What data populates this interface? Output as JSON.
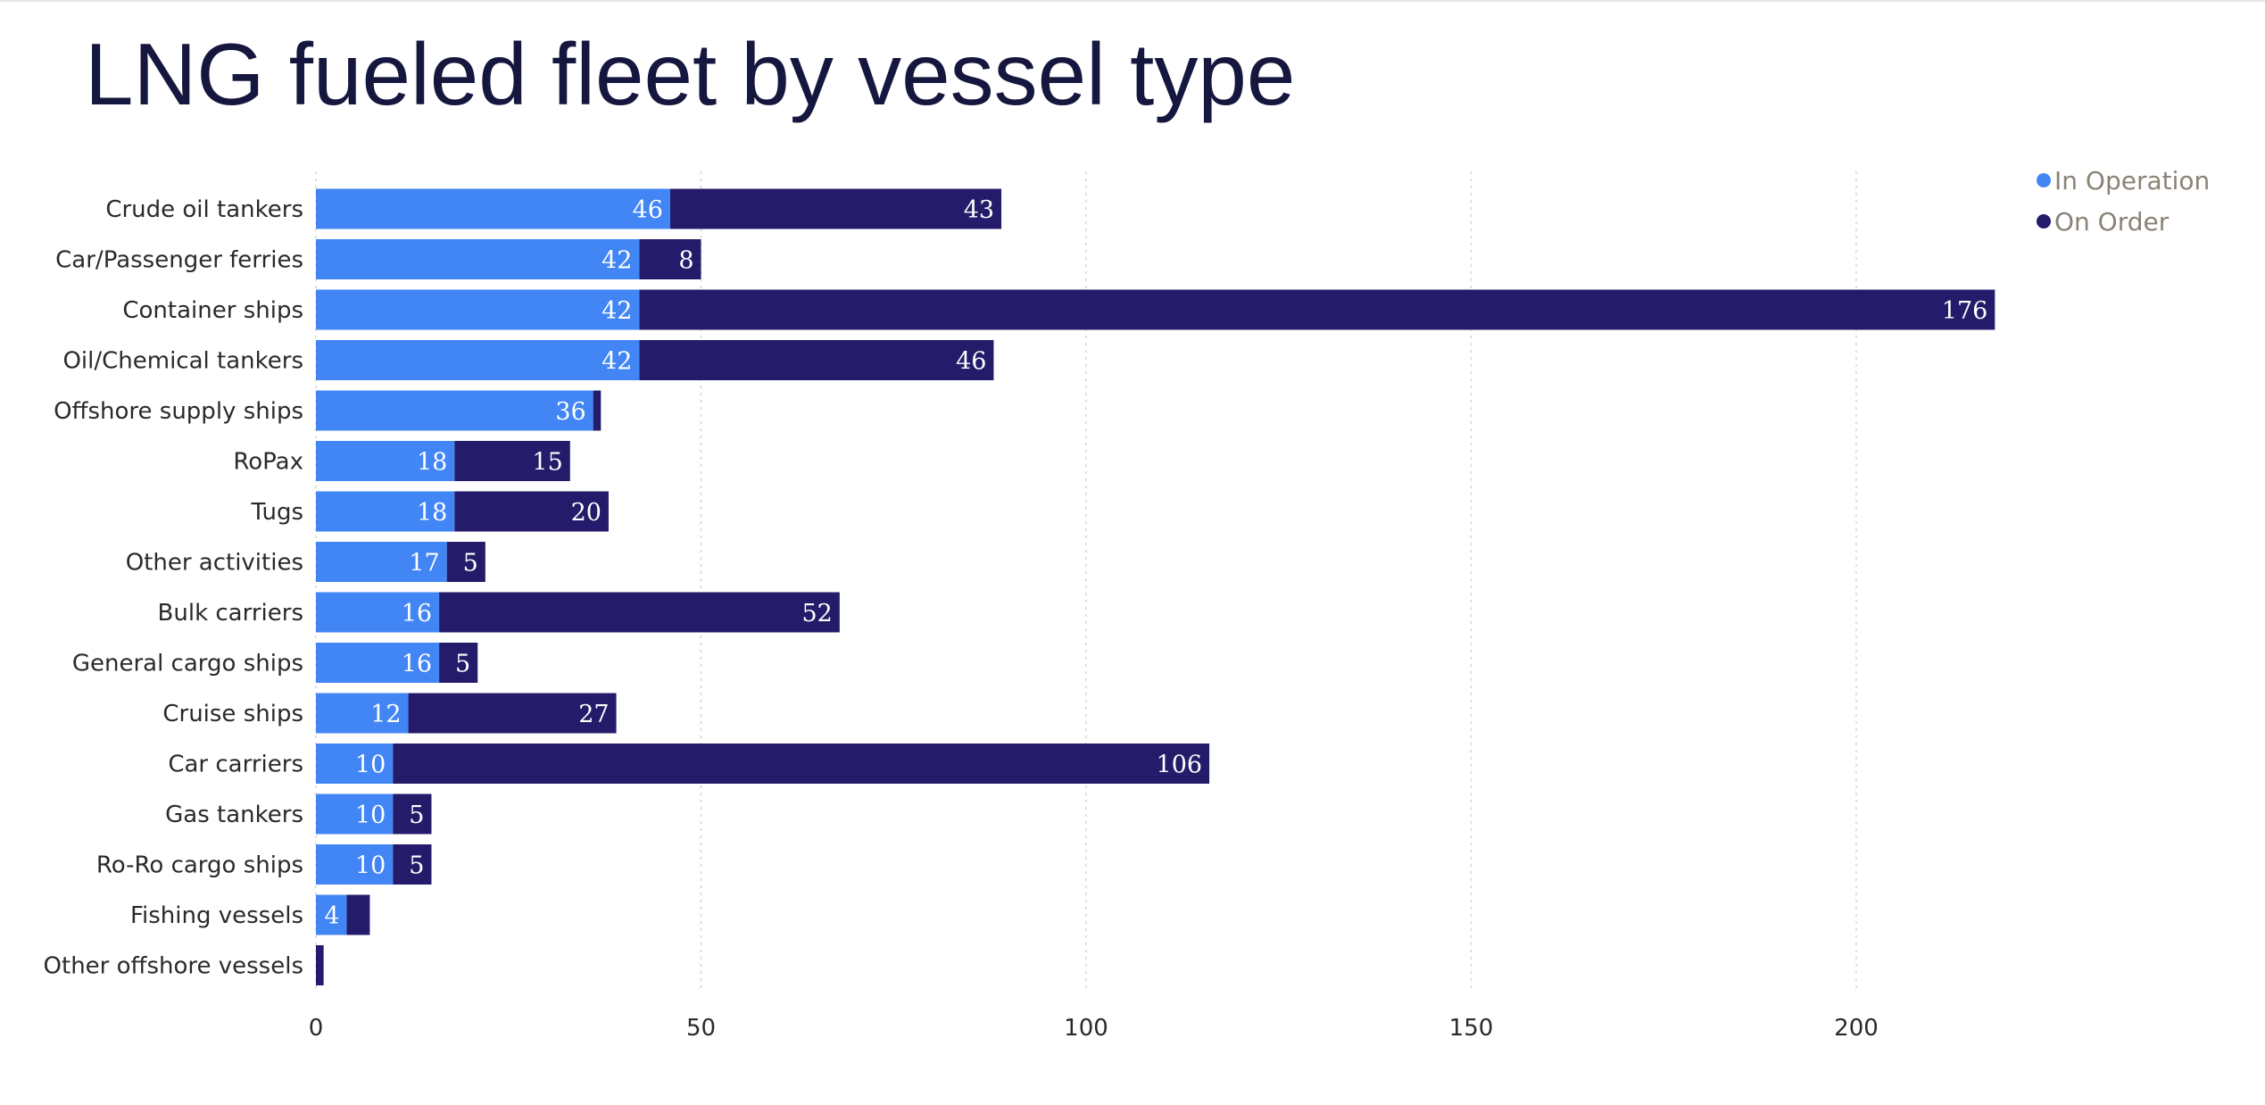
{
  "page": {
    "title": "LNG fueled fleet by vessel type"
  },
  "colors": {
    "in_operation": "#4285f4",
    "on_order": "#241c6a",
    "grid": "#d6d6d6"
  },
  "chart_data": {
    "type": "bar",
    "orientation": "horizontal",
    "stacked": true,
    "title": "LNG fueled fleet by vessel type",
    "xlabel": "",
    "ylabel": "",
    "xlim": [
      0,
      250
    ],
    "x_ticks": [
      0,
      50,
      100,
      150,
      200
    ],
    "grid": "vertical dotted",
    "legend_position": "top-right",
    "categories": [
      "Crude oil tankers",
      "Car/Passenger ferries",
      "Container ships",
      "Oil/Chemical tankers",
      "Offshore supply ships",
      "RoPax",
      "Tugs",
      "Other activities",
      "Bulk carriers",
      "General cargo ships",
      "Cruise ships",
      "Car carriers",
      "Gas tankers",
      "Ro-Ro cargo ships",
      "Fishing vessels",
      "Other offshore vessels"
    ],
    "series": [
      {
        "name": "In Operation",
        "values": [
          46,
          42,
          42,
          42,
          36,
          18,
          18,
          17,
          16,
          16,
          12,
          10,
          10,
          10,
          4,
          0
        ],
        "labels": [
          "46",
          "42",
          "42",
          "42",
          "36",
          "18",
          "18",
          "17",
          "16",
          "16",
          "12",
          "10",
          "10",
          "10",
          "4",
          ""
        ]
      },
      {
        "name": "On Order",
        "values": [
          43,
          8,
          176,
          46,
          1,
          15,
          20,
          5,
          52,
          5,
          27,
          106,
          5,
          5,
          3,
          1
        ],
        "labels": [
          "43",
          "8",
          "176",
          "46",
          "",
          "15",
          "20",
          "5",
          "52",
          "5",
          "27",
          "106",
          "5",
          "5",
          "",
          ""
        ]
      }
    ]
  }
}
